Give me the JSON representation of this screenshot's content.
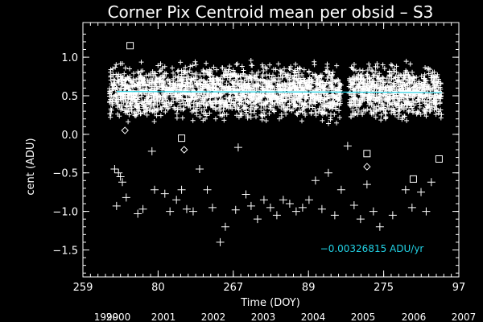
{
  "chart_data": {
    "type": "scatter",
    "title": "Corner Pix Centroid mean per obsid – S3",
    "xlabel": "Time (DOY)",
    "ylabel": "cent (ADU)",
    "xlim": [
      0,
      2920
    ],
    "ylim": [
      -1.85,
      1.45
    ],
    "grid": false,
    "x_tick_labels": [
      "259",
      "80",
      "267",
      "89",
      "275",
      "97"
    ],
    "y_ticks": [
      -1.5,
      -1.0,
      -0.5,
      0.0,
      0.5,
      1.0
    ],
    "y_tick_labels": [
      "−1.5",
      "−1.0",
      "−0.5",
      "0.0",
      "0.5",
      "1.0"
    ],
    "secondary_x_labels": [
      "1999",
      "2000",
      "2001",
      "2002",
      "2003",
      "2004",
      "2005",
      "2006",
      "2007"
    ],
    "fit_line": {
      "color": "#22d3e6",
      "segments": [
        {
          "x": [
            55,
            1800
          ],
          "y": [
            0.555,
            0.548
          ]
        },
        {
          "x": [
            1800,
            2580
          ],
          "y": [
            0.548,
            0.541
          ]
        }
      ],
      "label": "−0.00326815 ADU/yr"
    },
    "series": [
      {
        "marker": "plus",
        "color": "#ffffff",
        "x": [
          40,
          55,
          70,
          85,
          100,
          130,
          220,
          260,
          330,
          350,
          430,
          470,
          520,
          560,
          600,
          650,
          700,
          760,
          800,
          860,
          900,
          980,
          1000,
          1060,
          1100,
          1150,
          1200,
          1250,
          1300,
          1350,
          1400,
          1450,
          1500,
          1550,
          1600,
          1650,
          1700,
          1750,
          1800,
          1850,
          1900,
          1950,
          2000,
          2050,
          2100,
          2200,
          2300,
          2350,
          2420,
          2460,
          2500
        ],
        "y": [
          -0.45,
          -0.93,
          -0.5,
          -0.55,
          -0.62,
          -0.82,
          -1.03,
          -0.97,
          -0.22,
          -0.72,
          -0.77,
          -1.0,
          -0.85,
          -0.72,
          -0.97,
          -1.0,
          -0.45,
          -0.72,
          -0.95,
          -1.4,
          -1.2,
          -0.98,
          -0.17,
          -0.78,
          -0.93,
          -1.1,
          -0.85,
          -0.95,
          -1.05,
          -0.85,
          -0.9,
          -1.0,
          -0.95,
          -0.85,
          -0.6,
          -0.97,
          -0.5,
          -1.05,
          -0.72,
          -0.15,
          -0.92,
          -1.1,
          -0.65,
          -1.0,
          -1.2,
          -1.05,
          -0.72,
          -0.95,
          -0.75,
          -1.0,
          -0.62
        ]
      },
      {
        "marker": "square",
        "color": "#ffffff",
        "x": [
          160,
          560,
          2000,
          2360,
          2560
        ],
        "y": [
          1.15,
          -0.05,
          -0.25,
          -0.58,
          -0.32
        ]
      },
      {
        "marker": "diamond",
        "color": "#ffffff",
        "x": [
          120,
          580,
          2000
        ],
        "y": [
          0.05,
          -0.2,
          -0.42
        ]
      }
    ],
    "dense_band": {
      "marker": "plus",
      "color": "#ffffff",
      "x_ranges": [
        [
          0,
          1800
        ],
        [
          1860,
          2580
        ]
      ],
      "y_center": 0.55,
      "y_spread": 0.32
    }
  }
}
